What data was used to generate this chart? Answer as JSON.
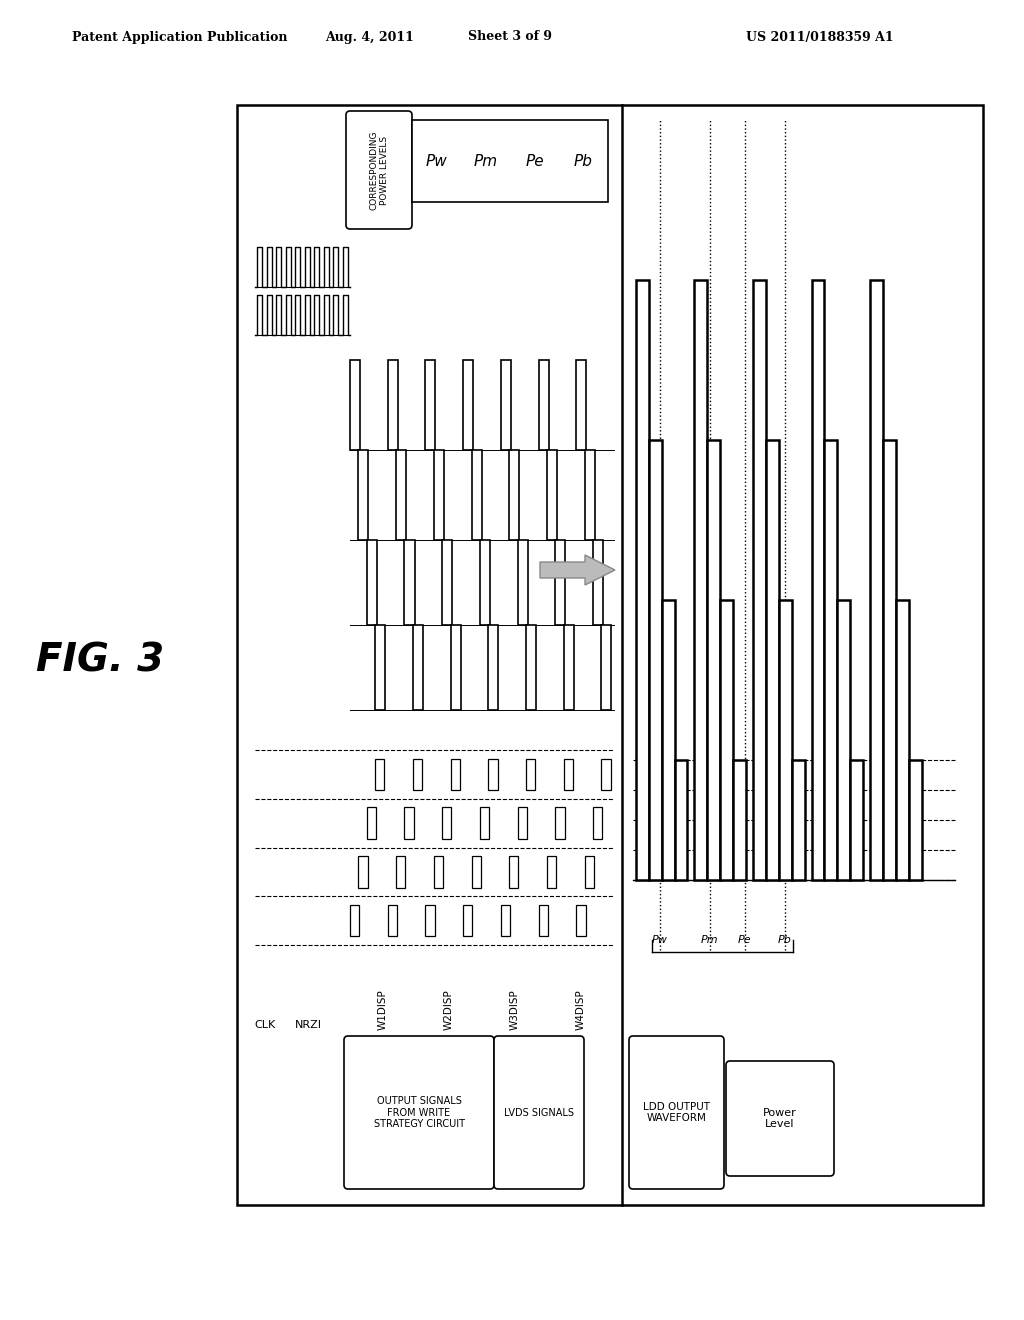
{
  "bg_color": "#ffffff",
  "header_left": "Patent Application Publication",
  "header_mid": "Aug. 4, 2011",
  "header_sheet": "Sheet 3 of 9",
  "header_right": "US 2011/0188359 A1",
  "fig_label": "FIG. 3",
  "power_levels_top": [
    "Pw",
    "Pm",
    "Pe",
    "Pb"
  ],
  "power_levels_bot": [
    "Pw",
    "Pm",
    "Pe",
    "Pb"
  ],
  "w_signal_labels": [
    "W1DISP",
    "W2DISP",
    "W3DISP",
    "W4DISP"
  ],
  "group1_label": "OUTPUT SIGNALS\nFROM WRITE\nSTRATEGY CIRCUIT",
  "group2_label": "LVDS SIGNALS",
  "right_waveform_label": "LDD OUTPUT\nWAVEFORM",
  "power_level_box_label": "Power\nLevel",
  "corr_pwr_label": "CORRESPONDING\nPOWER LEVELS"
}
